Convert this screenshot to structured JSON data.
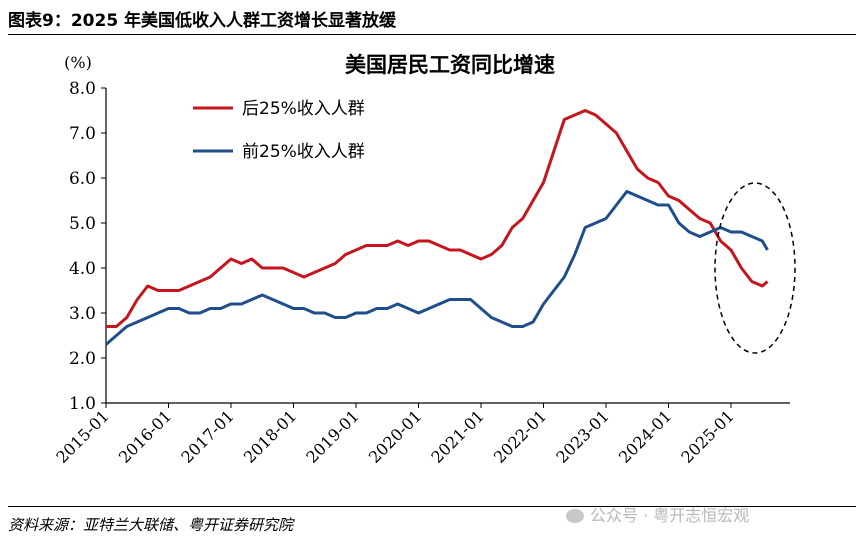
{
  "figure": {
    "title": "图表9：2025 年美国低收入人群工资增长显著放缓",
    "source": "资料来源：亚特兰大联储、粤开证券研究院",
    "watermark": "公众号 · 粤开志恒宏观",
    "watermark_icon": "wechat-icon"
  },
  "chart_data": {
    "type": "line",
    "title": "美国居民工资同比增速",
    "ylabel": "(%)",
    "xlabel": "",
    "ylim": [
      1.0,
      8.0
    ],
    "yticks": [
      "1.0",
      "2.0",
      "3.0",
      "4.0",
      "5.0",
      "6.0",
      "7.0",
      "8.0"
    ],
    "xticks": [
      "2015-01",
      "2016-01",
      "2017-01",
      "2018-01",
      "2019-01",
      "2020-01",
      "2021-01",
      "2022-01",
      "2023-01",
      "2024-01",
      "2025-01"
    ],
    "legend_position": "top-left",
    "annotation": "dashed ellipse around 2024-10 to 2025-07",
    "series": [
      {
        "name": "后25%收入人群",
        "color": "#c4161c",
        "values": [
          [
            "2015-01",
            2.7
          ],
          [
            "2015-03",
            2.7
          ],
          [
            "2015-05",
            2.9
          ],
          [
            "2015-07",
            3.3
          ],
          [
            "2015-09",
            3.6
          ],
          [
            "2015-11",
            3.5
          ],
          [
            "2016-01",
            3.5
          ],
          [
            "2016-03",
            3.5
          ],
          [
            "2016-05",
            3.6
          ],
          [
            "2016-07",
            3.7
          ],
          [
            "2016-09",
            3.8
          ],
          [
            "2016-11",
            4.0
          ],
          [
            "2017-01",
            4.2
          ],
          [
            "2017-03",
            4.1
          ],
          [
            "2017-05",
            4.2
          ],
          [
            "2017-07",
            4.0
          ],
          [
            "2017-09",
            4.0
          ],
          [
            "2017-11",
            4.0
          ],
          [
            "2018-01",
            3.9
          ],
          [
            "2018-03",
            3.8
          ],
          [
            "2018-05",
            3.9
          ],
          [
            "2018-07",
            4.0
          ],
          [
            "2018-09",
            4.1
          ],
          [
            "2018-11",
            4.3
          ],
          [
            "2019-01",
            4.4
          ],
          [
            "2019-03",
            4.5
          ],
          [
            "2019-05",
            4.5
          ],
          [
            "2019-07",
            4.5
          ],
          [
            "2019-09",
            4.6
          ],
          [
            "2019-11",
            4.5
          ],
          [
            "2020-01",
            4.6
          ],
          [
            "2020-03",
            4.6
          ],
          [
            "2020-05",
            4.5
          ],
          [
            "2020-07",
            4.4
          ],
          [
            "2020-09",
            4.4
          ],
          [
            "2020-11",
            4.3
          ],
          [
            "2021-01",
            4.2
          ],
          [
            "2021-03",
            4.3
          ],
          [
            "2021-05",
            4.5
          ],
          [
            "2021-07",
            4.9
          ],
          [
            "2021-09",
            5.1
          ],
          [
            "2021-11",
            5.5
          ],
          [
            "2022-01",
            5.9
          ],
          [
            "2022-03",
            6.6
          ],
          [
            "2022-05",
            7.3
          ],
          [
            "2022-07",
            7.4
          ],
          [
            "2022-09",
            7.5
          ],
          [
            "2022-11",
            7.4
          ],
          [
            "2023-01",
            7.2
          ],
          [
            "2023-03",
            7.0
          ],
          [
            "2023-05",
            6.6
          ],
          [
            "2023-07",
            6.2
          ],
          [
            "2023-09",
            6.0
          ],
          [
            "2023-11",
            5.9
          ],
          [
            "2024-01",
            5.6
          ],
          [
            "2024-03",
            5.5
          ],
          [
            "2024-05",
            5.3
          ],
          [
            "2024-07",
            5.1
          ],
          [
            "2024-09",
            5.0
          ],
          [
            "2024-11",
            4.6
          ],
          [
            "2025-01",
            4.4
          ],
          [
            "2025-03",
            4.0
          ],
          [
            "2025-05",
            3.7
          ],
          [
            "2025-07",
            3.6
          ],
          [
            "2025-08",
            3.7
          ]
        ]
      },
      {
        "name": "前25%收入人群",
        "color": "#1f4e8c",
        "values": [
          [
            "2015-01",
            2.3
          ],
          [
            "2015-03",
            2.5
          ],
          [
            "2015-05",
            2.7
          ],
          [
            "2015-07",
            2.8
          ],
          [
            "2015-09",
            2.9
          ],
          [
            "2015-11",
            3.0
          ],
          [
            "2016-01",
            3.1
          ],
          [
            "2016-03",
            3.1
          ],
          [
            "2016-05",
            3.0
          ],
          [
            "2016-07",
            3.0
          ],
          [
            "2016-09",
            3.1
          ],
          [
            "2016-11",
            3.1
          ],
          [
            "2017-01",
            3.2
          ],
          [
            "2017-03",
            3.2
          ],
          [
            "2017-05",
            3.3
          ],
          [
            "2017-07",
            3.4
          ],
          [
            "2017-09",
            3.3
          ],
          [
            "2017-11",
            3.2
          ],
          [
            "2018-01",
            3.1
          ],
          [
            "2018-03",
            3.1
          ],
          [
            "2018-05",
            3.0
          ],
          [
            "2018-07",
            3.0
          ],
          [
            "2018-09",
            2.9
          ],
          [
            "2018-11",
            2.9
          ],
          [
            "2019-01",
            3.0
          ],
          [
            "2019-03",
            3.0
          ],
          [
            "2019-05",
            3.1
          ],
          [
            "2019-07",
            3.1
          ],
          [
            "2019-09",
            3.2
          ],
          [
            "2019-11",
            3.1
          ],
          [
            "2020-01",
            3.0
          ],
          [
            "2020-03",
            3.1
          ],
          [
            "2020-05",
            3.2
          ],
          [
            "2020-07",
            3.3
          ],
          [
            "2020-09",
            3.3
          ],
          [
            "2020-11",
            3.3
          ],
          [
            "2021-01",
            3.1
          ],
          [
            "2021-03",
            2.9
          ],
          [
            "2021-05",
            2.8
          ],
          [
            "2021-07",
            2.7
          ],
          [
            "2021-09",
            2.7
          ],
          [
            "2021-11",
            2.8
          ],
          [
            "2022-01",
            3.2
          ],
          [
            "2022-03",
            3.5
          ],
          [
            "2022-05",
            3.8
          ],
          [
            "2022-07",
            4.3
          ],
          [
            "2022-09",
            4.9
          ],
          [
            "2022-11",
            5.0
          ],
          [
            "2023-01",
            5.1
          ],
          [
            "2023-03",
            5.4
          ],
          [
            "2023-05",
            5.7
          ],
          [
            "2023-07",
            5.6
          ],
          [
            "2023-09",
            5.5
          ],
          [
            "2023-11",
            5.4
          ],
          [
            "2024-01",
            5.4
          ],
          [
            "2024-03",
            5.0
          ],
          [
            "2024-05",
            4.8
          ],
          [
            "2024-07",
            4.7
          ],
          [
            "2024-09",
            4.8
          ],
          [
            "2024-11",
            4.9
          ],
          [
            "2025-01",
            4.8
          ],
          [
            "2025-03",
            4.8
          ],
          [
            "2025-05",
            4.7
          ],
          [
            "2025-07",
            4.6
          ],
          [
            "2025-08",
            4.4
          ]
        ]
      }
    ]
  }
}
